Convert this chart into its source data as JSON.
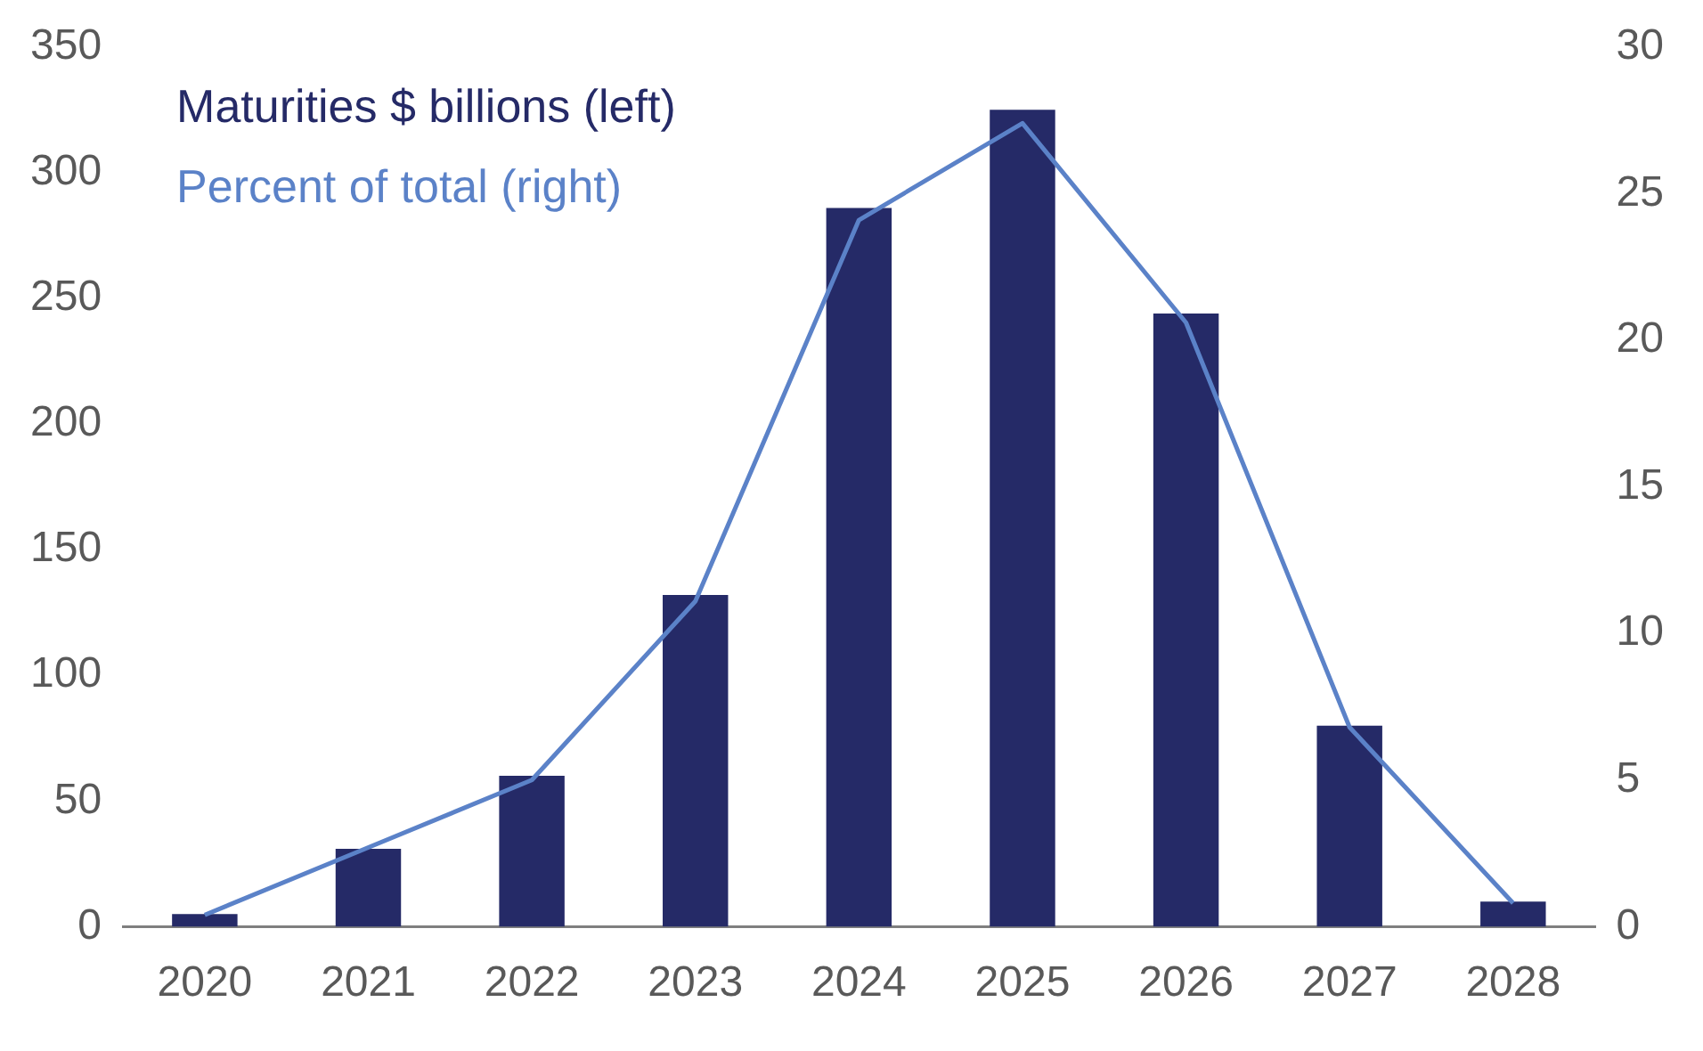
{
  "chart_data": {
    "type": "bar",
    "categories": [
      "2020",
      "2021",
      "2022",
      "2023",
      "2024",
      "2025",
      "2026",
      "2027",
      "2028"
    ],
    "series": [
      {
        "name": "Maturities $ billions (left)",
        "color": "#252a67",
        "values": [
          5,
          31,
          60,
          132,
          286,
          325,
          244,
          80,
          10
        ]
      },
      {
        "name": "Percent of total (right)",
        "color": "#5b82c8",
        "type": "line",
        "axis": "y2",
        "values": [
          0.4,
          2.7,
          5.0,
          11.1,
          24.1,
          27.4,
          20.6,
          6.8,
          0.8
        ]
      }
    ],
    "ylim": [
      0,
      350
    ],
    "yticks": [
      0,
      50,
      100,
      150,
      200,
      250,
      300,
      350
    ],
    "y2lim": [
      0,
      30
    ],
    "y2ticks": [
      0,
      5,
      10,
      15,
      20,
      25,
      30
    ],
    "grid": false,
    "legend": "top left",
    "marker": "none",
    "line_style": "solid"
  }
}
